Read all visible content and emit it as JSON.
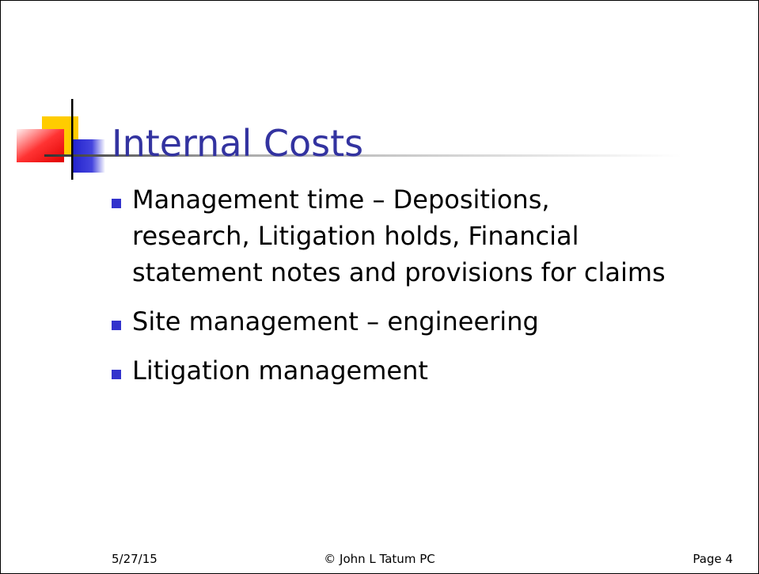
{
  "title": "Internal Costs",
  "bullets": [
    "Management time – Depositions, research, Litigation holds, Financial statement notes and provisions for claims",
    "Site management – engineering",
    "Litigation management"
  ],
  "footer": {
    "date": "5/27/15",
    "center": "© John L Tatum PC",
    "page": "Page 4"
  }
}
